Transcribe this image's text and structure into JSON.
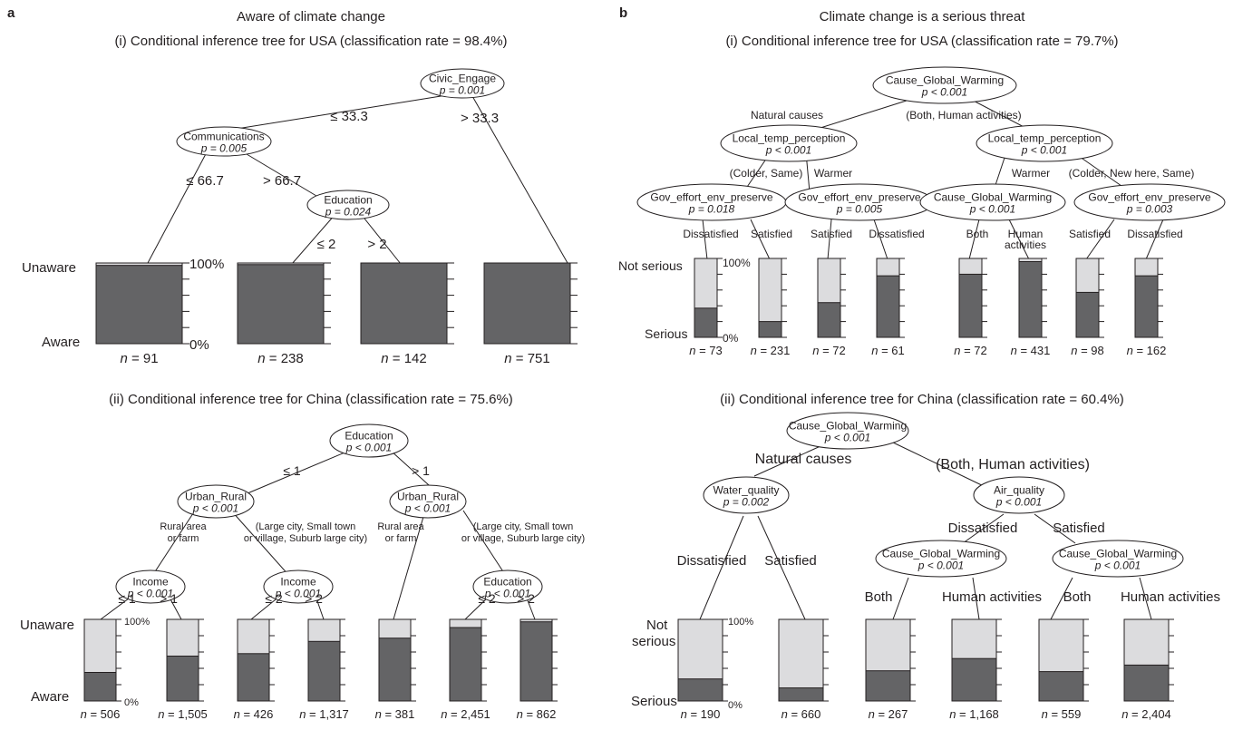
{
  "colors": {
    "dark": "#646466",
    "light": "#dcdcde",
    "line": "#231f20"
  },
  "panel_a": {
    "label": "a",
    "title": "Aware of climate change",
    "usa": {
      "subtitle": "(i) Conditional inference tree for USA (classification rate = 98.4%)",
      "nodes": [
        {
          "name": "Civic_Engage",
          "p": "p = 0.001"
        },
        {
          "name": "Communications",
          "p": "p = 0.005"
        },
        {
          "name": "Education",
          "p": "p = 0.024"
        }
      ],
      "edges": [
        "≤ 33.3",
        "> 33.3",
        "≤ 66.7",
        "> 66.7",
        "≤ 2",
        "> 2"
      ],
      "axis": {
        "top": "Unaware",
        "bottom": "Aware",
        "top_pct": "100%",
        "bottom_pct": "0%"
      },
      "leaves": [
        {
          "n": "91",
          "aware_pct": 97
        },
        {
          "n": "238",
          "aware_pct": 98
        },
        {
          "n": "142",
          "aware_pct": 100
        },
        {
          "n": "751",
          "aware_pct": 100
        }
      ]
    },
    "china": {
      "subtitle": "(ii) Conditional inference tree for China (classification rate = 75.6%)",
      "nodes": [
        {
          "name": "Education",
          "p": "p < 0.001"
        },
        {
          "name": "Urban_Rural",
          "p": "p < 0.001"
        },
        {
          "name": "Urban_Rural",
          "p": "p < 0.001"
        },
        {
          "name": "Income",
          "p": "p < 0.001"
        },
        {
          "name": "Income",
          "p": "p < 0.001"
        },
        {
          "name": "Education",
          "p": "p < 0.001"
        }
      ],
      "edges": [
        "≤ 1",
        "> 1",
        "Rural area",
        "or farm",
        "(Large city, Small town",
        "or village, Suburb large city)",
        "Rural area",
        "or farm",
        "(Large city, Small town",
        "or village, Suburb large city)",
        "≤ 1",
        "> 1",
        "≤ 2",
        "> 2",
        "≤ 2",
        "> 2"
      ],
      "axis": {
        "top": "Unaware",
        "bottom": "Aware",
        "top_pct": "100%",
        "bottom_pct": "0%"
      },
      "leaves": [
        {
          "n": "506",
          "aware_pct": 35
        },
        {
          "n": "1,505",
          "aware_pct": 55
        },
        {
          "n": "426",
          "aware_pct": 58
        },
        {
          "n": "1,317",
          "aware_pct": 73
        },
        {
          "n": "381",
          "aware_pct": 77
        },
        {
          "n": "2,451",
          "aware_pct": 90
        },
        {
          "n": "862",
          "aware_pct": 97
        }
      ]
    }
  },
  "panel_b": {
    "label": "b",
    "title": "Climate change is a serious threat",
    "usa": {
      "subtitle": "(i) Conditional inference tree for USA (classification rate = 79.7%)",
      "nodes": [
        {
          "name": "Cause_Global_Warming",
          "p": "p < 0.001"
        },
        {
          "name": "Local_temp_perception",
          "p": "p < 0.001"
        },
        {
          "name": "Local_temp_perception",
          "p": "p < 0.001"
        },
        {
          "name": "Gov_effort_env_preserve",
          "p": "p = 0.018"
        },
        {
          "name": "Gov_effort_env_preserve",
          "p": "p = 0.005"
        },
        {
          "name": "Cause_Global_Warming",
          "p": "p < 0.001"
        },
        {
          "name": "Gov_effort_env_preserve",
          "p": "p = 0.003"
        }
      ],
      "edges": [
        "Natural causes",
        "(Both, Human activities)",
        "(Colder, Same)",
        "Warmer",
        "Warmer",
        "(Colder, New here, Same)",
        "Dissatisfied",
        "Satisfied",
        "Satisfied",
        "Dissatisfied",
        "Both",
        "Human",
        "activities",
        "Satisfied",
        "Dissatisfied"
      ],
      "axis": {
        "top": "Not serious",
        "bottom": "Serious",
        "top_pct": "100%",
        "bottom_pct": "0%"
      },
      "leaves": [
        {
          "n": "73",
          "serious_pct": 37
        },
        {
          "n": "231",
          "serious_pct": 20
        },
        {
          "n": "72",
          "serious_pct": 44
        },
        {
          "n": "61",
          "serious_pct": 78
        },
        {
          "n": "72",
          "serious_pct": 80
        },
        {
          "n": "431",
          "serious_pct": 96
        },
        {
          "n": "98",
          "serious_pct": 57
        },
        {
          "n": "162",
          "serious_pct": 78
        }
      ]
    },
    "china": {
      "subtitle": "(ii) Conditional inference tree for China (classification rate = 60.4%)",
      "nodes": [
        {
          "name": "Cause_Global_Warming",
          "p": "p < 0.001"
        },
        {
          "name": "Water_quality",
          "p": "p = 0.002"
        },
        {
          "name": "Air_quality",
          "p": "p < 0.001"
        },
        {
          "name": "Cause_Global_Warming",
          "p": "p < 0.001"
        },
        {
          "name": "Cause_Global_Warming",
          "p": "p < 0.001"
        }
      ],
      "edges": [
        "Natural causes",
        "(Both, Human activities)",
        "Dissatisfied",
        "Satisfied",
        "Dissatisfied",
        "Satisfied",
        "Both",
        "Human activities",
        "Both",
        "Human activities"
      ],
      "axis": {
        "top": "Not",
        "top2": "serious",
        "bottom": "Serious",
        "top_pct": "100%",
        "bottom_pct": "0%"
      },
      "leaves": [
        {
          "n": "190",
          "serious_pct": 27
        },
        {
          "n": "660",
          "serious_pct": 16
        },
        {
          "n": "267",
          "serious_pct": 37
        },
        {
          "n": "1,168",
          "serious_pct": 52
        },
        {
          "n": "559",
          "serious_pct": 36
        },
        {
          "n": "2,404",
          "serious_pct": 44
        }
      ]
    }
  }
}
